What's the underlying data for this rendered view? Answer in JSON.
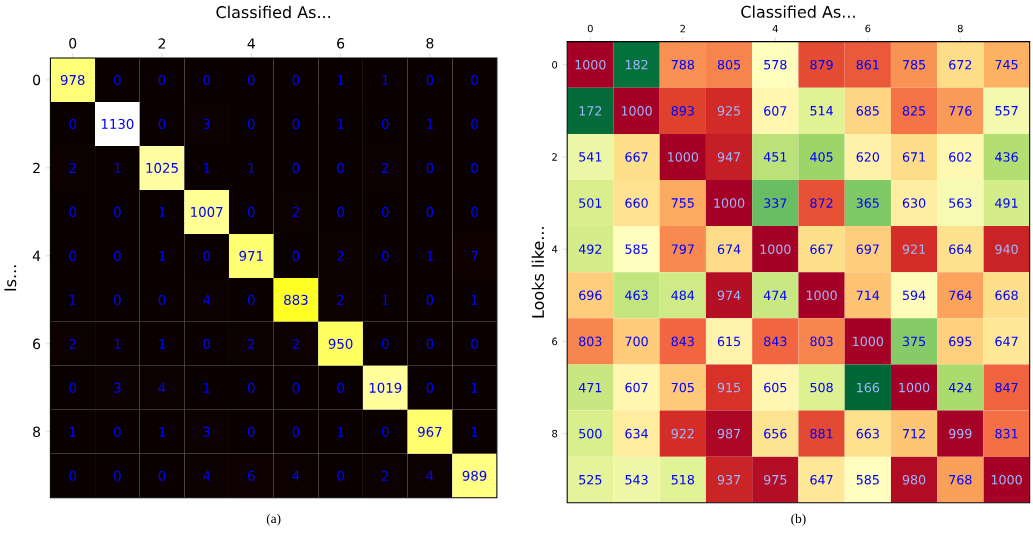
{
  "chart_data": [
    {
      "type": "heatmap",
      "xlabel": "Classified As...",
      "ylabel": "Is...",
      "annotations": [
        "(a)"
      ],
      "data_labels": true,
      "categories": [
        "0",
        null,
        "2",
        null,
        "4",
        null,
        "6",
        null,
        "8",
        null
      ],
      "y_categories": [
        "0",
        null,
        "2",
        null,
        "4",
        null,
        "6",
        null,
        "8",
        null
      ],
      "cells": [
        [
          978,
          0,
          0,
          0,
          0,
          0,
          1,
          1,
          0,
          0
        ],
        [
          0,
          1130,
          0,
          3,
          0,
          0,
          1,
          0,
          1,
          0
        ],
        [
          2,
          1,
          1025,
          1,
          1,
          0,
          0,
          2,
          0,
          0
        ],
        [
          0,
          0,
          1,
          1007,
          0,
          2,
          0,
          0,
          0,
          0
        ],
        [
          0,
          0,
          1,
          0,
          971,
          0,
          2,
          0,
          1,
          7
        ],
        [
          1,
          0,
          0,
          4,
          0,
          883,
          2,
          1,
          0,
          1
        ],
        [
          2,
          1,
          1,
          0,
          2,
          2,
          950,
          0,
          0,
          0
        ],
        [
          0,
          3,
          4,
          1,
          0,
          0,
          0,
          1019,
          0,
          1
        ],
        [
          1,
          0,
          1,
          3,
          0,
          0,
          1,
          0,
          967,
          1
        ],
        [
          0,
          0,
          0,
          4,
          6,
          4,
          0,
          2,
          4,
          989
        ]
      ]
    },
    {
      "type": "heatmap",
      "xlabel": "Classified As...",
      "ylabel": "Looks like...",
      "annotations": [
        "(b)"
      ],
      "data_labels": true,
      "categories": [
        "0",
        null,
        "2",
        null,
        "4",
        null,
        "6",
        null,
        "8",
        null
      ],
      "y_categories": [
        "0",
        null,
        "2",
        null,
        "4",
        null,
        "6",
        null,
        "8",
        null
      ],
      "cells": [
        [
          1000,
          182,
          788,
          805,
          578,
          879,
          861,
          785,
          672,
          745
        ],
        [
          172,
          1000,
          893,
          925,
          607,
          514,
          685,
          825,
          776,
          557
        ],
        [
          541,
          667,
          1000,
          947,
          451,
          405,
          620,
          671,
          602,
          436
        ],
        [
          501,
          660,
          755,
          1000,
          337,
          872,
          365,
          630,
          563,
          491
        ],
        [
          492,
          585,
          797,
          674,
          1000,
          667,
          697,
          921,
          664,
          940
        ],
        [
          696,
          463,
          484,
          974,
          474,
          1000,
          714,
          594,
          764,
          668
        ],
        [
          803,
          700,
          843,
          615,
          843,
          803,
          1000,
          375,
          695,
          647
        ],
        [
          471,
          607,
          705,
          915,
          605,
          508,
          166,
          1000,
          424,
          847
        ],
        [
          500,
          634,
          922,
          987,
          656,
          881,
          663,
          712,
          999,
          831
        ],
        [
          525,
          543,
          518,
          937,
          975,
          647,
          585,
          980,
          768,
          1000
        ]
      ]
    }
  ]
}
